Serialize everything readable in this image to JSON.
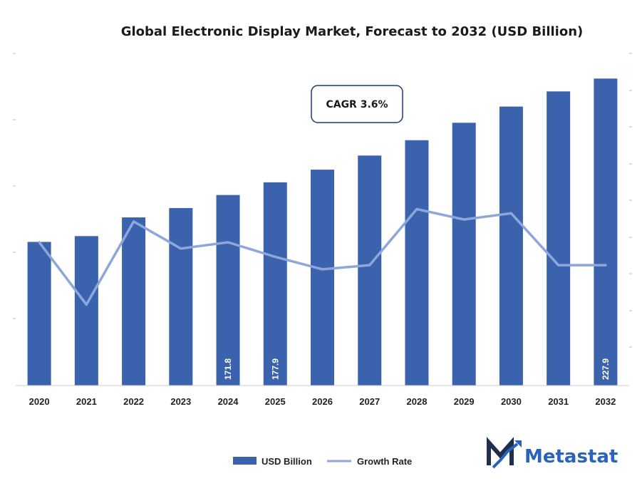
{
  "chart_data": {
    "type": "bar",
    "title": "Global Electronic Display Market, Forecast to 2032 (USD Billion)",
    "categories": [
      "2020",
      "2021",
      "2022",
      "2023",
      "2024",
      "2025",
      "2026",
      "2027",
      "2028",
      "2029",
      "2030",
      "2031",
      "2032"
    ],
    "series": [
      {
        "name": "USD Billion",
        "type": "bar",
        "values": [
          149.2,
          152.0,
          161.0,
          165.5,
          171.8,
          177.9,
          184.0,
          190.8,
          198.2,
          206.6,
          214.4,
          221.7,
          227.9
        ],
        "data_labels": [
          "",
          "",
          "",
          "",
          "171.8",
          "177.9",
          "",
          "",
          "",
          "",
          "",
          "",
          "227.9"
        ]
      },
      {
        "name": "Growth Rate",
        "type": "line",
        "values": [
          4.9,
          1.9,
          5.9,
          4.6,
          4.9,
          4.2,
          3.6,
          3.8,
          6.5,
          6.0,
          6.3,
          3.8,
          3.8
        ]
      }
    ],
    "ylim": [
      80,
      240
    ],
    "y2lim": [
      -2,
      14
    ],
    "grid": false,
    "legend": "bottom-center",
    "annotation": "CAGR 3.6%",
    "colors": {
      "bar": "#3b62ad",
      "line": "#8fa6dd"
    }
  },
  "branding": {
    "name": "Metastat",
    "logo_color": "#2a63b8"
  }
}
